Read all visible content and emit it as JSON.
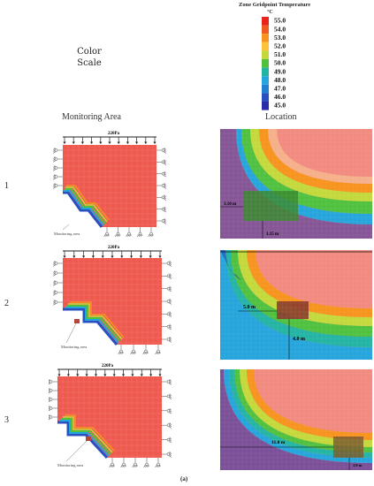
{
  "legend": {
    "title": "Zone Gridpoint Temperature",
    "unit": "°C",
    "labels": [
      "55.0",
      "54.0",
      "53.0",
      "52.0",
      "51.0",
      "50.0",
      "49.0",
      "48.0",
      "47.0",
      "46.0",
      "45.0"
    ],
    "colors": [
      "#e8231c",
      "#ef5a22",
      "#f7941d",
      "#fcc33a",
      "#c3d93b",
      "#4fc13f",
      "#23b4a4",
      "#25a5dc",
      "#1f7fd0",
      "#2a4fc0",
      "#2b2aa8"
    ]
  },
  "color_scale_label": "Color\nScale",
  "headers": {
    "monitoring_area": "Monitoring Area",
    "location": "Location"
  },
  "rows": [
    {
      "num": "1",
      "load": "220Pa",
      "monitor_label": "Monitoring area",
      "dist_horizontal": "1.10 m",
      "dist_vertical": "1.15 m"
    },
    {
      "num": "2",
      "load": "220Pa",
      "monitor_label": "Monitoring area",
      "dist_horizontal": "5.0 m",
      "dist_vertical": "4.0 m"
    },
    {
      "num": "3",
      "load": "220Pa",
      "monitor_label": "Monitoring area",
      "dist_horizontal": "11.8 m",
      "dist_vertical": "1.0 m"
    }
  ],
  "caption": "(a)"
}
